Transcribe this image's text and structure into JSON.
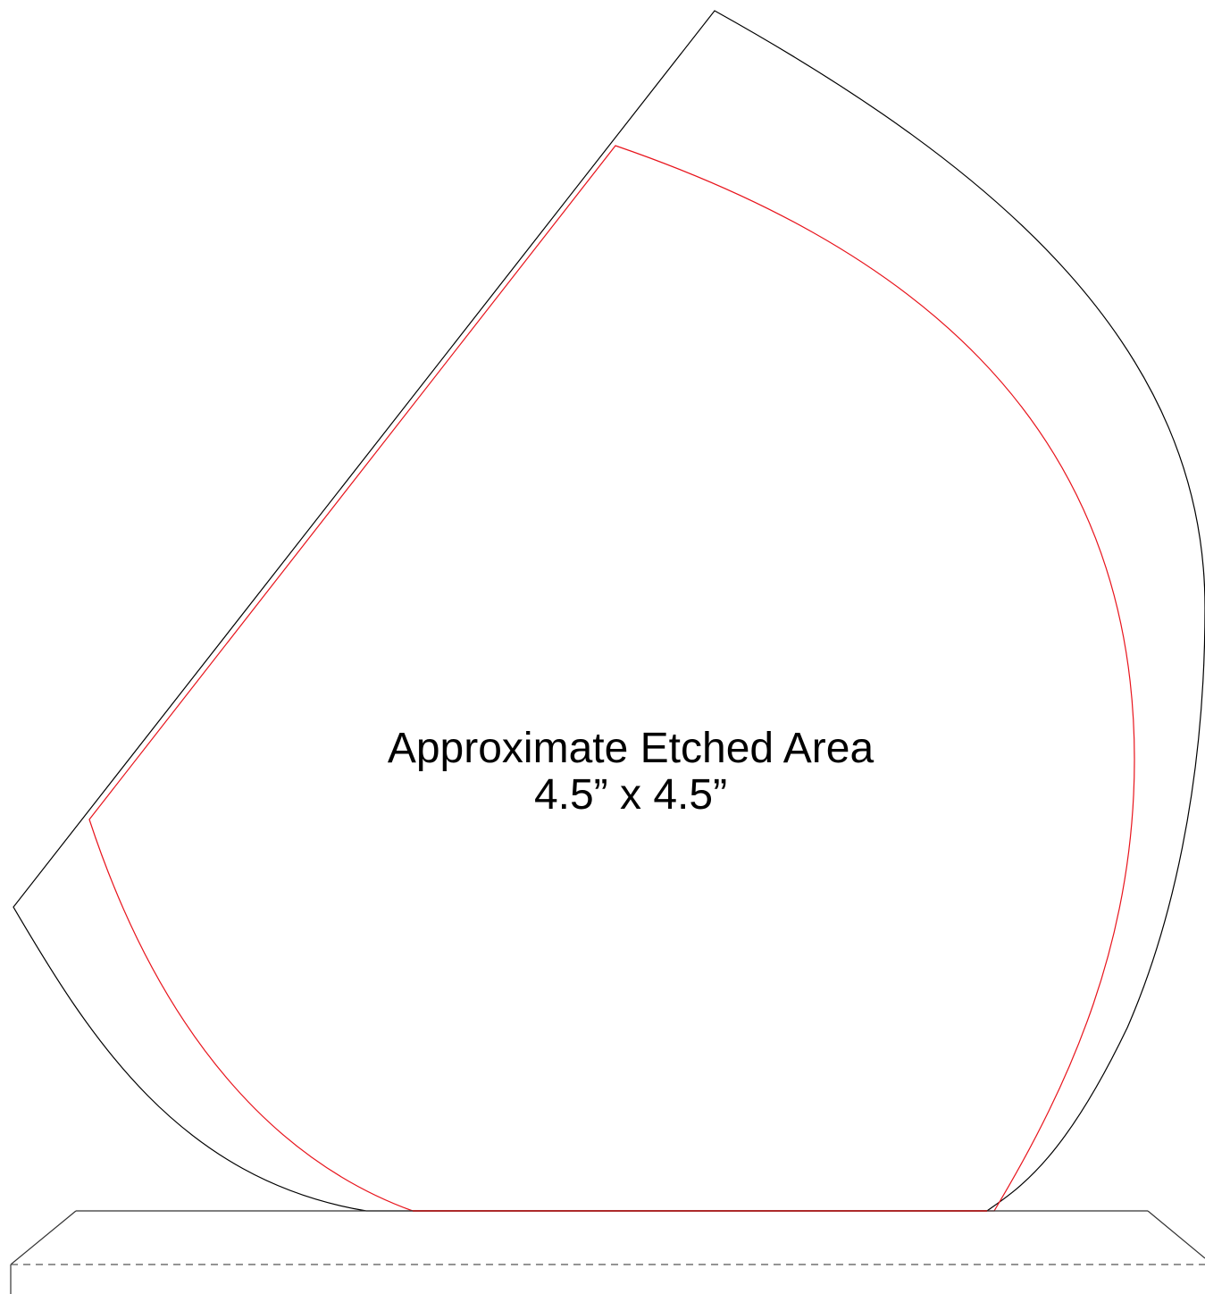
{
  "diagram": {
    "label_title": "Approximate Etched Area",
    "label_size": "4.5” x 4.5”",
    "colors": {
      "outline": "#000000",
      "etch_boundary": "#e8141c",
      "base_dashed": "#555555",
      "background": "#ffffff"
    }
  }
}
